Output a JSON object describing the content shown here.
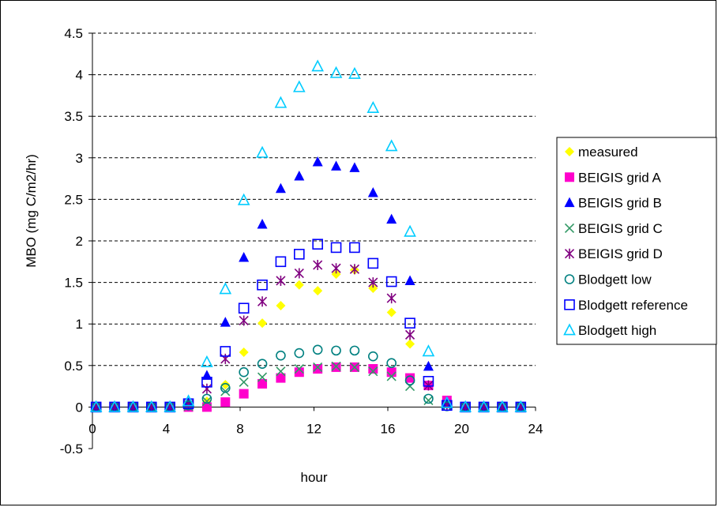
{
  "chart_data": {
    "type": "scatter",
    "xlabel": "hour",
    "ylabel": "MBO (mg C/m2/hr)",
    "xlim": [
      0,
      24
    ],
    "ylim": [
      -0.5,
      4.5
    ],
    "xticks": [
      0,
      4,
      8,
      12,
      16,
      20,
      24
    ],
    "yticks": [
      -0.5,
      0,
      0.5,
      1,
      1.5,
      2,
      2.5,
      3,
      3.5,
      4,
      4.5
    ],
    "grid": "horizontal dashed",
    "legend_position": "right",
    "x": [
      0.2,
      1.2,
      2.2,
      3.2,
      4.2,
      5.2,
      6.2,
      7.2,
      8.2,
      9.2,
      10.2,
      11.2,
      12.2,
      13.2,
      14.2,
      15.2,
      16.2,
      17.2,
      18.2,
      19.2,
      20.2,
      21.2,
      22.2,
      23.2
    ],
    "series": [
      {
        "name": "measured",
        "marker": "diamond",
        "color": "#FFFF00",
        "values": [
          0,
          0,
          0,
          0,
          0,
          0.02,
          0.07,
          0.27,
          0.66,
          1.01,
          1.22,
          1.47,
          1.4,
          1.6,
          1.65,
          1.43,
          1.14,
          0.76,
          0.26,
          0.08,
          0,
          0,
          0,
          0
        ]
      },
      {
        "name": "BEIGIS grid A",
        "marker": "square-filled",
        "color": "#FF00CC",
        "values": [
          0,
          0,
          0,
          0,
          0,
          0,
          0,
          0.06,
          0.16,
          0.28,
          0.35,
          0.42,
          0.46,
          0.48,
          0.48,
          0.46,
          0.42,
          0.35,
          0.26,
          0.08,
          0,
          0,
          0,
          0
        ]
      },
      {
        "name": "BEIGIS grid B",
        "marker": "triangle-filled",
        "color": "#0000FF",
        "values": [
          0,
          0,
          0,
          0,
          0,
          0.05,
          0.38,
          1.02,
          1.8,
          2.2,
          2.63,
          2.78,
          2.95,
          2.9,
          2.88,
          2.58,
          2.26,
          1.52,
          0.49,
          0.04,
          0,
          0,
          0,
          0
        ]
      },
      {
        "name": "BEIGIS grid C",
        "marker": "x",
        "color": "#339966",
        "values": [
          0,
          0,
          0,
          0,
          0,
          0.01,
          0.07,
          0.19,
          0.3,
          0.36,
          0.43,
          0.46,
          0.48,
          0.49,
          0.48,
          0.43,
          0.37,
          0.25,
          0.08,
          0.02,
          0,
          0,
          0,
          0
        ]
      },
      {
        "name": "BEIGIS grid D",
        "marker": "star",
        "color": "#800080",
        "values": [
          0,
          0,
          0,
          0,
          0,
          0.03,
          0.22,
          0.58,
          1.04,
          1.27,
          1.52,
          1.61,
          1.71,
          1.67,
          1.66,
          1.5,
          1.31,
          0.87,
          0.26,
          0.02,
          0,
          0,
          0,
          0
        ]
      },
      {
        "name": "Blodgett low",
        "marker": "circle-open",
        "color": "#008080",
        "values": [
          0,
          0,
          0,
          0,
          0,
          0.02,
          0.1,
          0.23,
          0.42,
          0.52,
          0.62,
          0.65,
          0.69,
          0.68,
          0.68,
          0.61,
          0.53,
          0.32,
          0.1,
          0.01,
          0,
          0,
          0,
          0
        ]
      },
      {
        "name": "Blodgett reference",
        "marker": "square-open",
        "color": "#0000FF",
        "values": [
          0,
          0,
          0,
          0,
          0,
          0.04,
          0.3,
          0.67,
          1.19,
          1.47,
          1.75,
          1.84,
          1.96,
          1.92,
          1.92,
          1.73,
          1.51,
          1.01,
          0.31,
          0.02,
          0,
          0,
          0,
          0
        ]
      },
      {
        "name": "Blodgett high",
        "marker": "triangle-open",
        "color": "#00CCFF",
        "values": [
          0,
          0,
          0,
          0,
          0,
          0.07,
          0.54,
          1.42,
          2.49,
          3.06,
          3.66,
          3.85,
          4.1,
          4.02,
          4.01,
          3.6,
          3.14,
          2.11,
          0.67,
          0.05,
          0,
          0,
          0,
          0
        ]
      }
    ]
  }
}
